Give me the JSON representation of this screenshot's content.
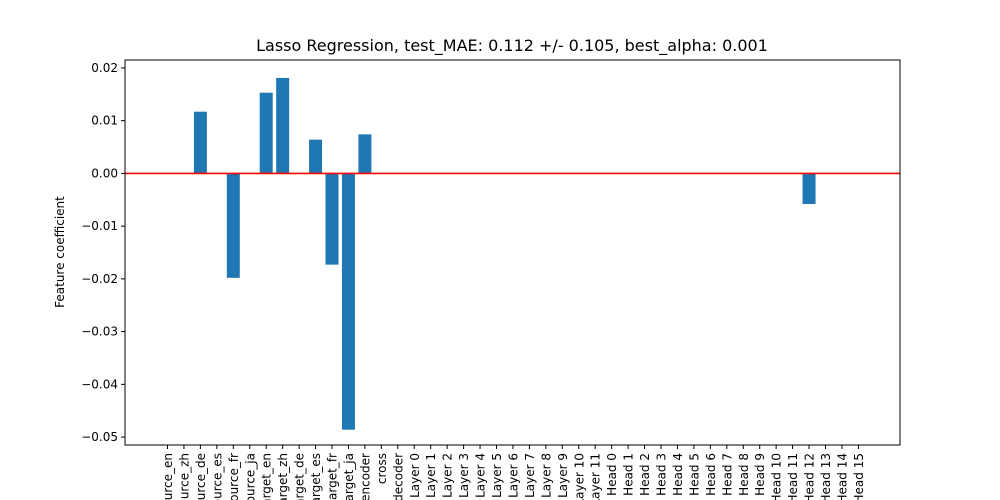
{
  "chart_data": {
    "type": "bar",
    "title": "Lasso Regression, test_MAE: 0.112 +/- 0.105, best_alpha: 0.001",
    "xlabel": "",
    "ylabel": "Feature coefficient",
    "ylim": [
      -0.0515,
      0.0215
    ],
    "yticks": [
      -0.05,
      -0.04,
      -0.03,
      -0.02,
      -0.01,
      0.0,
      0.01,
      0.02
    ],
    "ytick_labels": [
      "−0.05",
      "−0.04",
      "−0.03",
      "−0.02",
      "−0.01",
      "0.00",
      "0.01",
      "0.02"
    ],
    "categories": [
      "source_en",
      "source_zh",
      "source_de",
      "source_es",
      "source_fr",
      "source_ja",
      "target_en",
      "target_zh",
      "target_de",
      "target_es",
      "target_fr",
      "target_ja",
      "encoder",
      "cross",
      "decoder",
      "Layer 0",
      "Layer 1",
      "Layer 2",
      "Layer 3",
      "Layer 4",
      "Layer 5",
      "Layer 6",
      "Layer 7",
      "Layer 8",
      "Layer 9",
      "Layer 10",
      "Layer 11",
      "Head 0",
      "Head 1",
      "Head 2",
      "Head 3",
      "Head 4",
      "Head 5",
      "Head 6",
      "Head 7",
      "Head 8",
      "Head 9",
      "Head 10",
      "Head 11",
      "Head 12",
      "Head 13",
      "Head 14",
      "Head 15"
    ],
    "values": [
      0,
      0,
      0.0117,
      0,
      -0.0198,
      0,
      0.0153,
      0.0181,
      0,
      0.0064,
      -0.0173,
      -0.0486,
      0.0074,
      0,
      0,
      0,
      0,
      0,
      0,
      0,
      0,
      0,
      0,
      0,
      0,
      0,
      0,
      0,
      0,
      0,
      0,
      0,
      0,
      0,
      0,
      0,
      0,
      0,
      0,
      -0.0058,
      0,
      0,
      0
    ],
    "bar_color": "#1f77b4",
    "reference_line": {
      "y": 0,
      "color": "#ff0000"
    },
    "grid": false,
    "legend": "none"
  }
}
